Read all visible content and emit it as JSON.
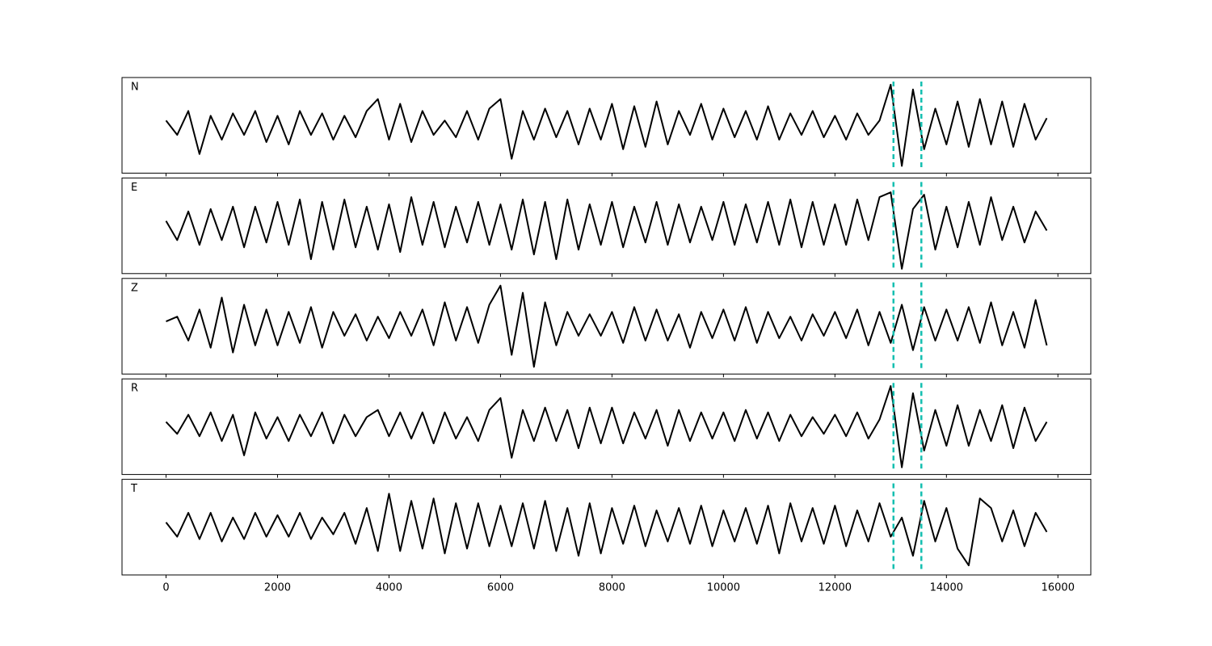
{
  "chart_data": {
    "type": "line",
    "layout": "stacked",
    "x": [
      0,
      200,
      400,
      600,
      800,
      1000,
      1200,
      1400,
      1600,
      1800,
      2000,
      2200,
      2400,
      2600,
      2800,
      3000,
      3200,
      3400,
      3600,
      3800,
      4000,
      4200,
      4400,
      4600,
      4800,
      5000,
      5200,
      5400,
      5600,
      5800,
      6000,
      6200,
      6400,
      6600,
      6800,
      7000,
      7200,
      7400,
      7600,
      7800,
      8000,
      8200,
      8400,
      8600,
      8800,
      9000,
      9200,
      9400,
      9600,
      9800,
      10000,
      10200,
      10400,
      10600,
      10800,
      11000,
      11200,
      11400,
      11600,
      11800,
      12000,
      12200,
      12400,
      12600,
      12800,
      13000,
      13200,
      13400,
      13600,
      13800,
      14000,
      14200,
      14400,
      14600,
      14800,
      15000,
      15200,
      15400,
      15600,
      15800
    ],
    "xlim": [
      -790,
      16590
    ],
    "xticks": [
      0,
      2000,
      4000,
      6000,
      8000,
      10000,
      12000,
      14000,
      16000
    ],
    "ylim": [
      -1,
      1
    ],
    "vlines": [
      13050,
      13550
    ],
    "vline_color": "#14bfb0",
    "series": [
      {
        "name": "N",
        "color": "#000000",
        "values": [
          0.1,
          -0.2,
          0.3,
          -0.6,
          0.2,
          -0.3,
          0.25,
          -0.2,
          0.3,
          -0.35,
          0.2,
          -0.4,
          0.3,
          -0.2,
          0.25,
          -0.3,
          0.2,
          -0.25,
          0.3,
          0.55,
          -0.3,
          0.45,
          -0.35,
          0.3,
          -0.2,
          0.1,
          -0.25,
          0.3,
          -0.3,
          0.35,
          0.55,
          -0.7,
          0.3,
          -0.3,
          0.35,
          -0.25,
          0.3,
          -0.4,
          0.35,
          -0.3,
          0.45,
          -0.5,
          0.4,
          -0.45,
          0.5,
          -0.4,
          0.3,
          -0.2,
          0.45,
          -0.3,
          0.35,
          -0.25,
          0.3,
          -0.3,
          0.4,
          -0.3,
          0.25,
          -0.2,
          0.3,
          -0.25,
          0.2,
          -0.3,
          0.25,
          -0.2,
          0.1,
          0.85,
          -0.85,
          0.75,
          -0.5,
          0.35,
          -0.4,
          0.5,
          -0.45,
          0.55,
          -0.4,
          0.5,
          -0.45,
          0.45,
          -0.3,
          0.15
        ]
      },
      {
        "name": "E",
        "color": "#000000",
        "values": [
          0.1,
          -0.3,
          0.3,
          -0.4,
          0.35,
          -0.3,
          0.4,
          -0.45,
          0.4,
          -0.35,
          0.5,
          -0.4,
          0.55,
          -0.7,
          0.5,
          -0.5,
          0.55,
          -0.45,
          0.4,
          -0.5,
          0.45,
          -0.55,
          0.6,
          -0.4,
          0.5,
          -0.45,
          0.4,
          -0.35,
          0.5,
          -0.4,
          0.45,
          -0.5,
          0.55,
          -0.6,
          0.5,
          -0.7,
          0.55,
          -0.5,
          0.45,
          -0.4,
          0.5,
          -0.45,
          0.4,
          -0.35,
          0.5,
          -0.4,
          0.45,
          -0.35,
          0.4,
          -0.3,
          0.5,
          -0.4,
          0.45,
          -0.35,
          0.5,
          -0.4,
          0.55,
          -0.45,
          0.5,
          -0.4,
          0.45,
          -0.4,
          0.55,
          -0.3,
          0.6,
          0.7,
          -0.9,
          0.35,
          0.65,
          -0.5,
          0.4,
          -0.45,
          0.5,
          -0.4,
          0.6,
          -0.3,
          0.4,
          -0.35,
          0.3,
          -0.1
        ]
      },
      {
        "name": "Z",
        "color": "#000000",
        "values": [
          0.1,
          0.2,
          -0.3,
          0.35,
          -0.45,
          0.6,
          -0.55,
          0.45,
          -0.4,
          0.35,
          -0.4,
          0.3,
          -0.35,
          0.4,
          -0.45,
          0.3,
          -0.2,
          0.25,
          -0.3,
          0.2,
          -0.25,
          0.3,
          -0.2,
          0.35,
          -0.4,
          0.5,
          -0.3,
          0.4,
          -0.35,
          0.45,
          0.85,
          -0.6,
          0.7,
          -0.85,
          0.5,
          -0.4,
          0.3,
          -0.2,
          0.25,
          -0.2,
          0.3,
          -0.35,
          0.4,
          -0.3,
          0.35,
          -0.3,
          0.25,
          -0.45,
          0.3,
          -0.25,
          0.35,
          -0.3,
          0.4,
          -0.35,
          0.3,
          -0.25,
          0.2,
          -0.3,
          0.25,
          -0.2,
          0.3,
          -0.25,
          0.35,
          -0.4,
          0.3,
          -0.35,
          0.45,
          -0.5,
          0.4,
          -0.3,
          0.35,
          -0.3,
          0.4,
          -0.35,
          0.5,
          -0.4,
          0.3,
          -0.45,
          0.55,
          -0.4
        ]
      },
      {
        "name": "R",
        "color": "#000000",
        "values": [
          0.1,
          -0.15,
          0.25,
          -0.2,
          0.3,
          -0.3,
          0.25,
          -0.6,
          0.3,
          -0.25,
          0.2,
          -0.3,
          0.25,
          -0.2,
          0.3,
          -0.35,
          0.25,
          -0.2,
          0.2,
          0.35,
          -0.2,
          0.3,
          -0.25,
          0.3,
          -0.35,
          0.3,
          -0.25,
          0.2,
          -0.3,
          0.35,
          0.6,
          -0.65,
          0.35,
          -0.3,
          0.4,
          -0.3,
          0.35,
          -0.45,
          0.4,
          -0.35,
          0.4,
          -0.35,
          0.3,
          -0.25,
          0.35,
          -0.4,
          0.35,
          -0.3,
          0.3,
          -0.25,
          0.3,
          -0.3,
          0.35,
          -0.25,
          0.3,
          -0.3,
          0.25,
          -0.2,
          0.2,
          -0.15,
          0.25,
          -0.2,
          0.3,
          -0.25,
          0.15,
          0.85,
          -0.85,
          0.7,
          -0.5,
          0.35,
          -0.4,
          0.45,
          -0.4,
          0.35,
          -0.3,
          0.45,
          -0.45,
          0.4,
          -0.3,
          0.1
        ]
      },
      {
        "name": "T",
        "color": "#000000",
        "values": [
          0.1,
          -0.2,
          0.3,
          -0.25,
          0.3,
          -0.3,
          0.2,
          -0.25,
          0.3,
          -0.2,
          0.25,
          -0.2,
          0.3,
          -0.25,
          0.2,
          -0.15,
          0.3,
          -0.35,
          0.4,
          -0.5,
          0.7,
          -0.5,
          0.55,
          -0.45,
          0.6,
          -0.55,
          0.5,
          -0.45,
          0.5,
          -0.4,
          0.45,
          -0.4,
          0.5,
          -0.45,
          0.55,
          -0.5,
          0.4,
          -0.6,
          0.5,
          -0.55,
          0.4,
          -0.35,
          0.45,
          -0.4,
          0.35,
          -0.3,
          0.4,
          -0.35,
          0.45,
          -0.4,
          0.35,
          -0.3,
          0.4,
          -0.35,
          0.45,
          -0.55,
          0.5,
          -0.3,
          0.4,
          -0.35,
          0.45,
          -0.4,
          0.35,
          -0.3,
          0.5,
          -0.2,
          0.2,
          -0.6,
          0.55,
          -0.3,
          0.4,
          -0.45,
          -0.8,
          0.6,
          0.4,
          -0.3,
          0.35,
          -0.4,
          0.3,
          -0.1
        ]
      }
    ]
  }
}
